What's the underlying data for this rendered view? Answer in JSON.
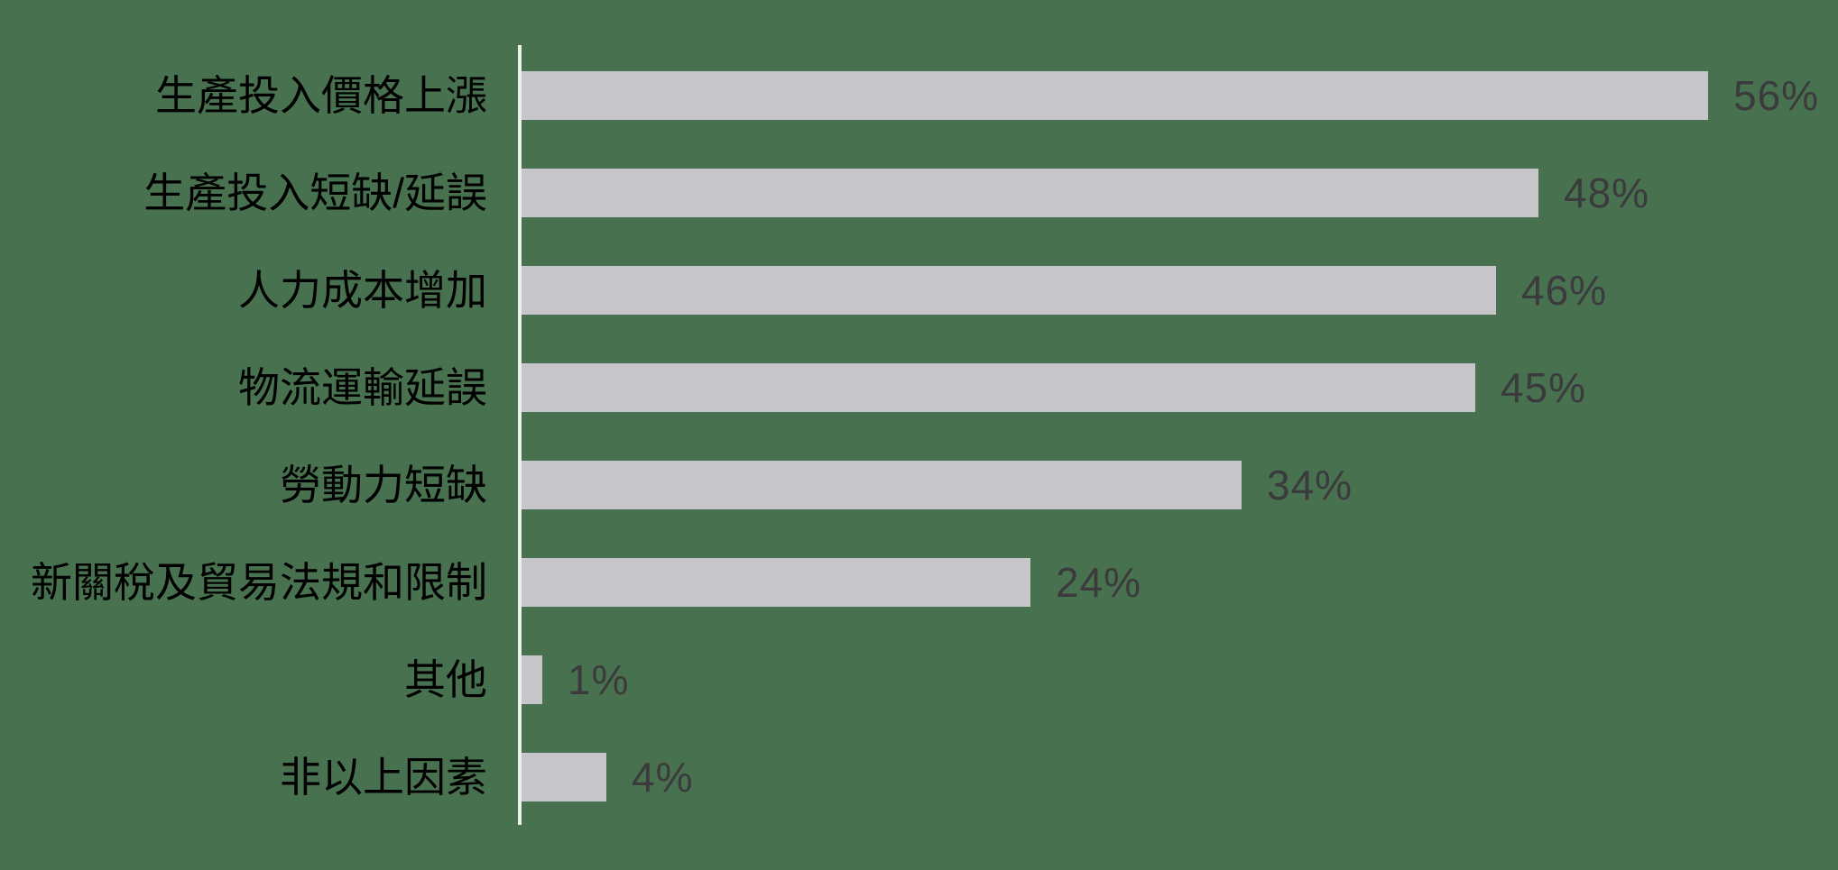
{
  "colors": {
    "background": "#48714f",
    "bar_fill": "#c7c6cb",
    "category_text": "#000000",
    "value_text": "#3b3b3d",
    "axis_line": "#efefec"
  },
  "chart_data": {
    "type": "bar",
    "orientation": "horizontal",
    "title": "",
    "xlabel": "",
    "ylabel": "",
    "categories": [
      "生產投入價格上漲",
      "生產投入短缺/延誤",
      "人力成本增加",
      "物流運輸延誤",
      "勞動力短缺",
      "新關稅及貿易法規和限制",
      "其他",
      "非以上因素"
    ],
    "values": [
      56,
      48,
      46,
      45,
      34,
      24,
      1,
      4
    ],
    "value_labels": [
      "56%",
      "48%",
      "46%",
      "45%",
      "34%",
      "24%",
      "1%",
      "4%"
    ],
    "xlim": [
      0,
      60
    ],
    "grid": "off",
    "legend": "none",
    "value_label_position": "outside-end"
  }
}
